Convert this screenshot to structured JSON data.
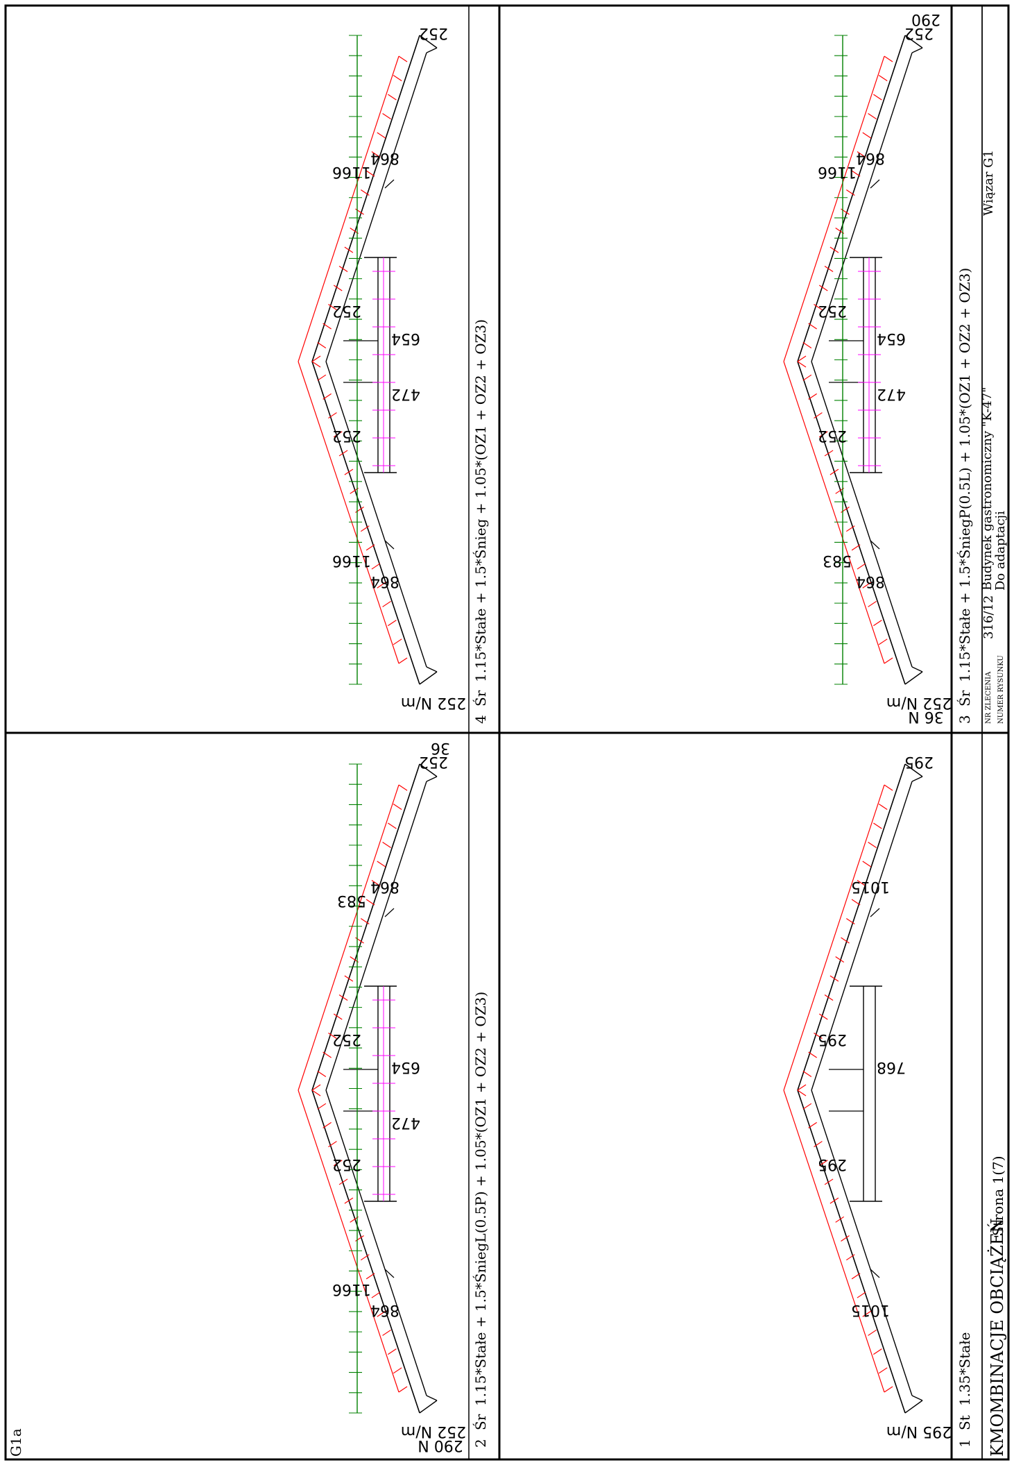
{
  "sheet": {
    "id_label": "G1a",
    "title": "KMOMBINACJE OBCIĄŻEŃ",
    "page": "Strona 1(7)",
    "order_label": "NR ZLECENIA",
    "order_number": "316/12",
    "drawing_label": "NUMER RYSUNKU",
    "project_line1": "Budynek gastronomiczny \"K-47\"",
    "project_line2": "Do adaptacji",
    "element": "Wiązar G1"
  },
  "colors": {
    "frame": "#000000",
    "dead": "#ff0000",
    "snow": "#008000",
    "wind": "#ff00ff"
  },
  "panels": [
    {
      "number": "1",
      "type": "St",
      "formula": "1.35*Stałe",
      "snow": null,
      "labels": {
        "left_bottom": "1015",
        "right_bottom": "1015",
        "left_top": "295",
        "right_top": "295",
        "middle_left": "",
        "middle_right": "768",
        "end_left": "295 N/m",
        "end_left2": "",
        "end_right": "295",
        "end_right2": ""
      }
    },
    {
      "number": "3",
      "type": "Śr",
      "formula": "1.15*Stałe + 1.5*ŚniegP(0.5L) + 1.05*(OZ1 + OZ2 + OZ3)",
      "snow": {
        "left": "583",
        "right": "1166"
      },
      "labels": {
        "left_bottom": "864",
        "right_bottom": "864",
        "left_top": "252",
        "right_top": "252",
        "middle_left": "472",
        "middle_right": "654",
        "end_left": "252 N/m",
        "end_left2": "36 N",
        "end_right": "252",
        "end_right2": "290"
      }
    },
    {
      "number": "2",
      "type": "Śr",
      "formula": "1.15*Stałe + 1.5*ŚniegL(0.5P) + 1.05*(OZ1 + OZ2 + OZ3)",
      "snow": {
        "left": "1166",
        "right": "583"
      },
      "labels": {
        "left_bottom": "864",
        "right_bottom": "864",
        "left_top": "252",
        "right_top": "252",
        "middle_left": "472",
        "middle_right": "654",
        "end_left": "252 N/m",
        "end_left2": "290 N",
        "end_right": "252",
        "end_right2": "36"
      }
    },
    {
      "number": "4",
      "type": "Śr",
      "formula": "1.15*Stałe + 1.5*Śnieg + 1.05*(OZ1 + OZ2 + OZ3)",
      "snow": {
        "left": "1166",
        "right": "1166"
      },
      "labels": {
        "left_bottom": "864",
        "right_bottom": "864",
        "left_top": "252",
        "right_top": "252",
        "middle_left": "472",
        "middle_right": "654",
        "end_left": "252 N/m",
        "end_left2": "",
        "end_right": "252",
        "end_right2": ""
      }
    }
  ]
}
